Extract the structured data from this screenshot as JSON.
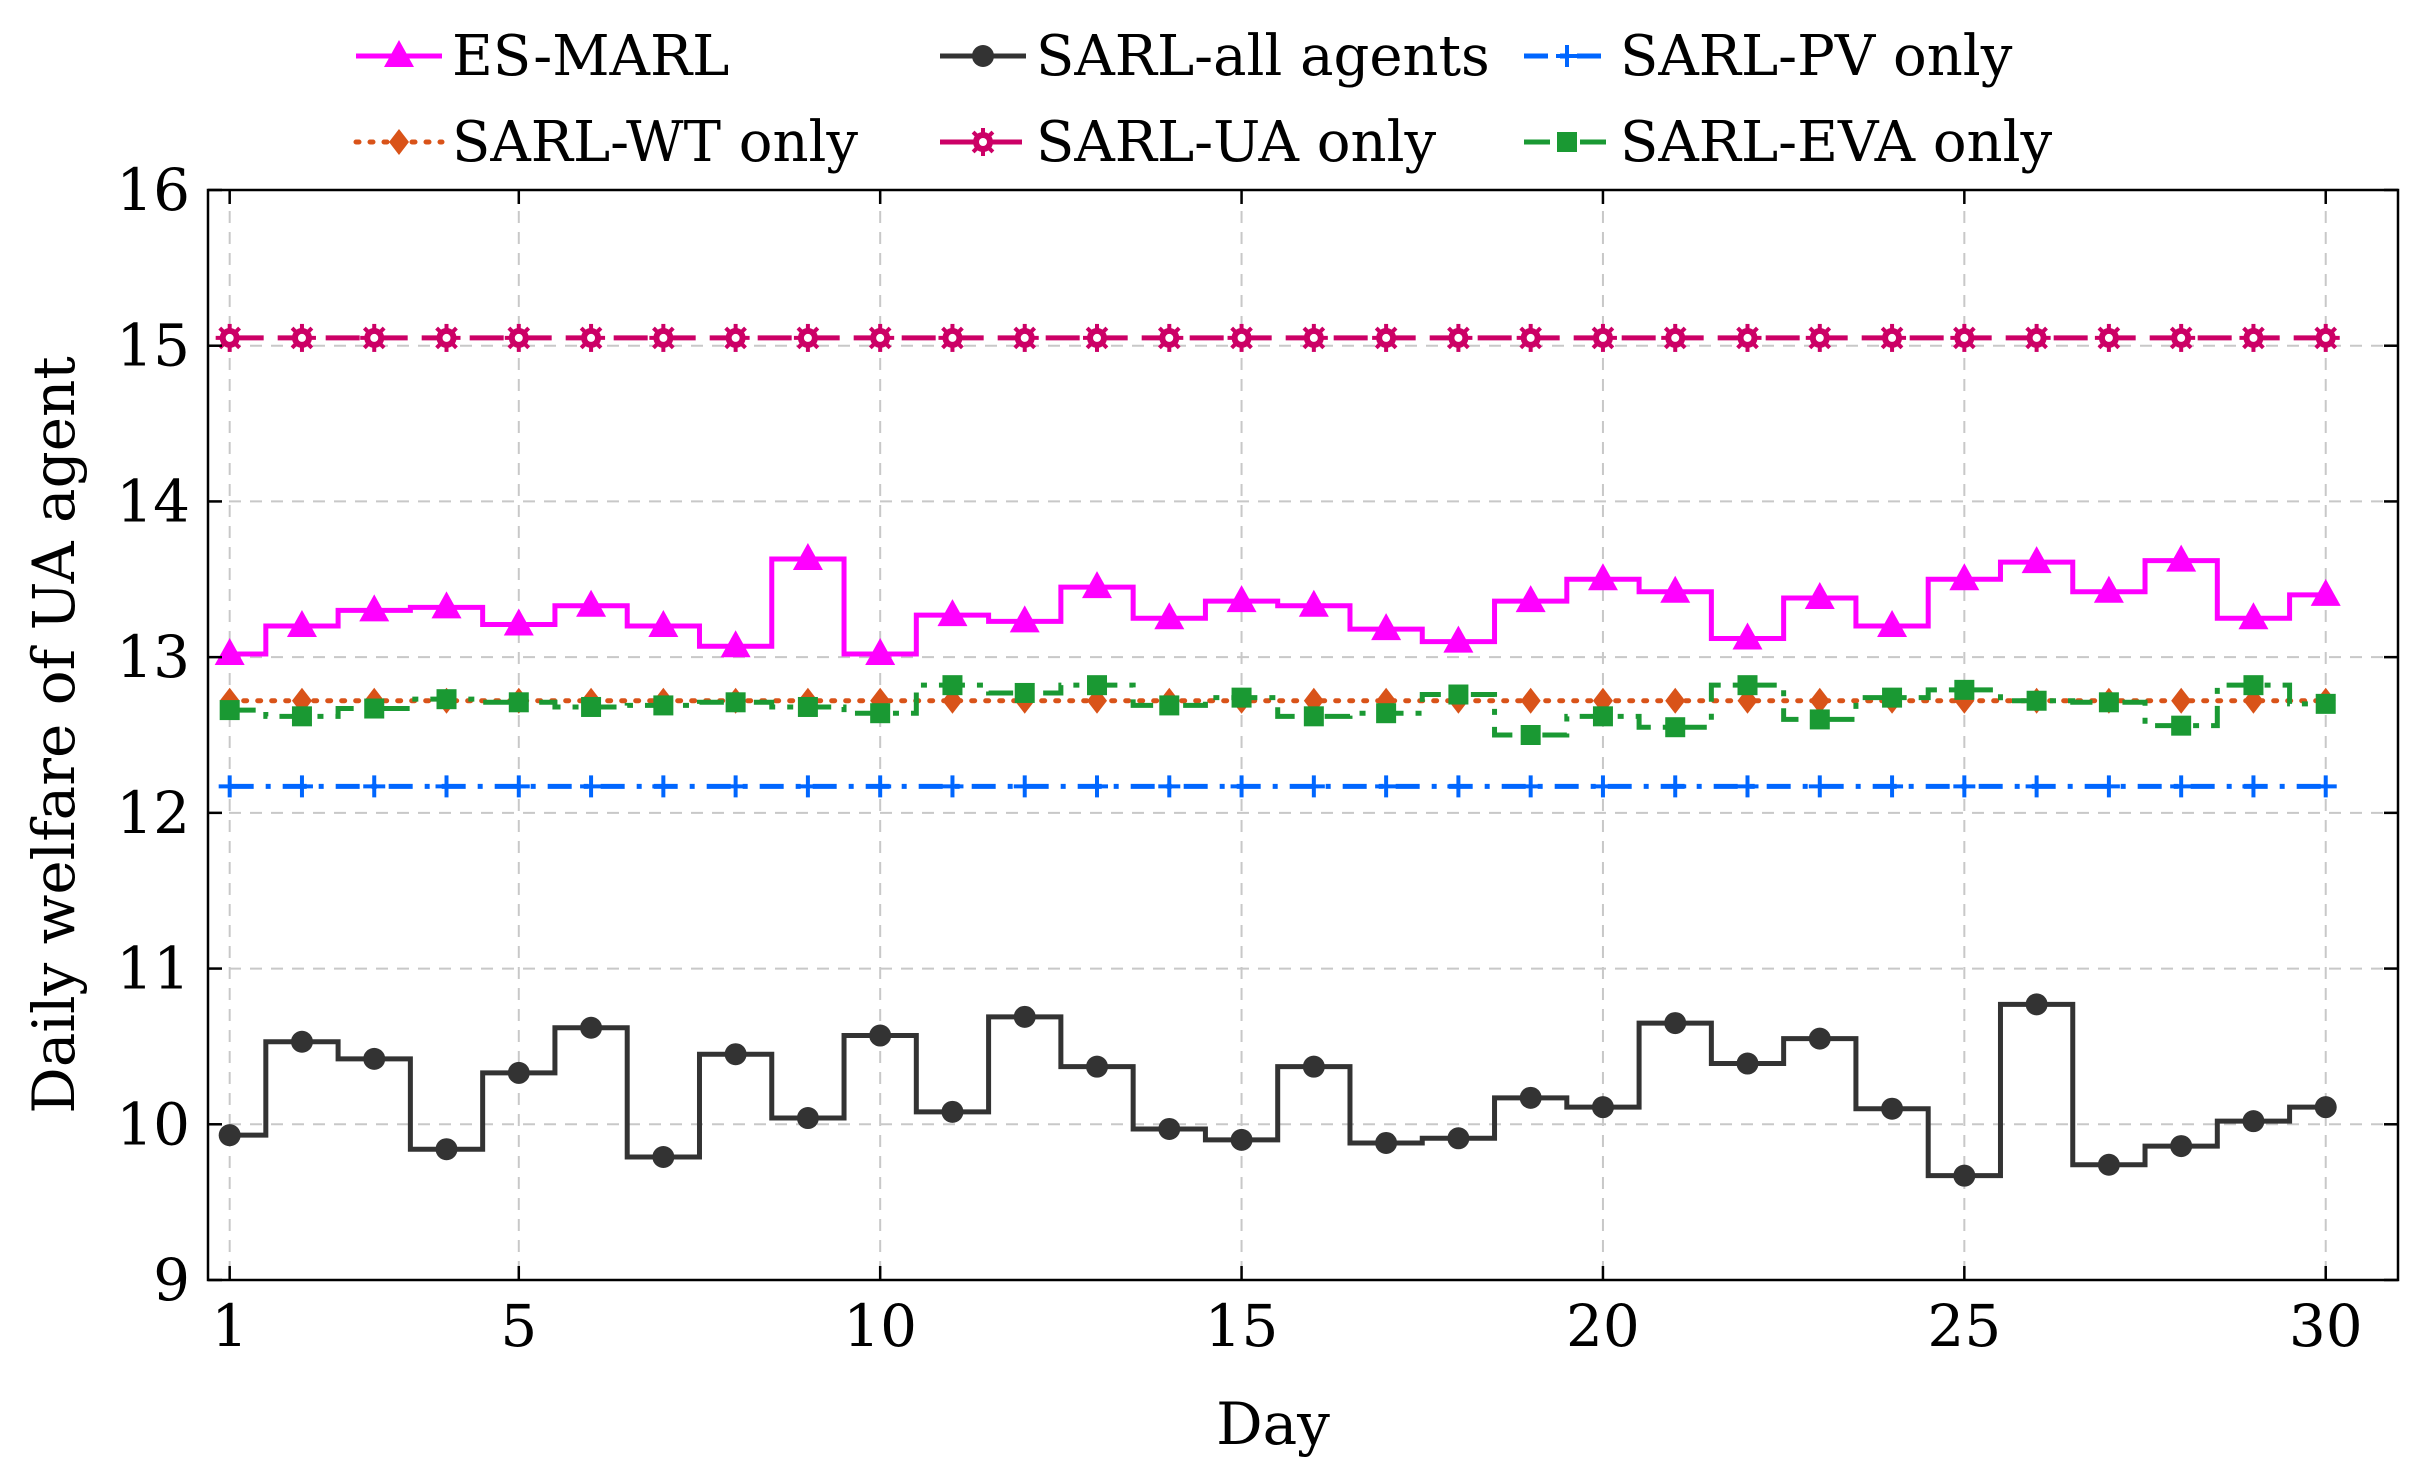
{
  "chart_data": {
    "type": "line",
    "title": "",
    "xlabel": "Day",
    "ylabel": "Daily welfare of UA agent",
    "xlim": [
      0.7,
      31
    ],
    "ylim": [
      9,
      16
    ],
    "xticks": [
      1,
      5,
      10,
      15,
      20,
      25,
      30
    ],
    "yticks": [
      9,
      10,
      11,
      12,
      13,
      14,
      15,
      16
    ],
    "grid": true,
    "legend_position": "top",
    "x": [
      1,
      2,
      3,
      4,
      5,
      6,
      7,
      8,
      9,
      10,
      11,
      12,
      13,
      14,
      15,
      16,
      17,
      18,
      19,
      20,
      21,
      22,
      23,
      24,
      25,
      26,
      27,
      28,
      29,
      30
    ],
    "series": [
      {
        "name": "ES-MARL",
        "style": "steps",
        "color": "#ff00ff",
        "marker": "triangle",
        "values": [
          13.02,
          13.2,
          13.3,
          13.32,
          13.21,
          13.33,
          13.2,
          13.07,
          13.63,
          13.02,
          13.27,
          13.23,
          13.45,
          13.25,
          13.36,
          13.33,
          13.18,
          13.1,
          13.36,
          13.5,
          13.42,
          13.12,
          13.38,
          13.2,
          13.5,
          13.61,
          13.42,
          13.62,
          13.25,
          13.4
        ]
      },
      {
        "name": "SARL-all agents",
        "style": "steps",
        "color": "#333333",
        "marker": "circle",
        "values": [
          9.93,
          10.53,
          10.42,
          9.84,
          10.33,
          10.62,
          9.79,
          10.45,
          10.04,
          10.57,
          10.08,
          10.69,
          10.37,
          9.97,
          9.9,
          10.37,
          9.88,
          9.91,
          10.17,
          10.11,
          10.65,
          10.39,
          10.55,
          10.1,
          9.67,
          10.77,
          9.74,
          9.86,
          10.02,
          10.11
        ]
      },
      {
        "name": "SARL-PV only",
        "style": "dashdot",
        "color": "#0066ff",
        "marker": "plus",
        "values": [
          12.17,
          12.17,
          12.17,
          12.17,
          12.17,
          12.17,
          12.17,
          12.17,
          12.17,
          12.17,
          12.17,
          12.17,
          12.17,
          12.17,
          12.17,
          12.17,
          12.17,
          12.17,
          12.17,
          12.17,
          12.17,
          12.17,
          12.17,
          12.17,
          12.17,
          12.17,
          12.17,
          12.17,
          12.17,
          12.17
        ]
      },
      {
        "name": "SARL-WT only",
        "style": "dotted",
        "color": "#d95319",
        "marker": "diamond",
        "values": [
          12.72,
          12.72,
          12.72,
          12.72,
          12.72,
          12.72,
          12.72,
          12.72,
          12.72,
          12.72,
          12.72,
          12.72,
          12.72,
          12.72,
          12.72,
          12.72,
          12.72,
          12.72,
          12.72,
          12.72,
          12.72,
          12.72,
          12.72,
          12.72,
          12.72,
          12.72,
          12.72,
          12.72,
          12.72,
          12.72
        ]
      },
      {
        "name": "SARL-UA only",
        "style": "dashed",
        "color": "#cc0066",
        "marker": "asterisk",
        "values": [
          15.05,
          15.05,
          15.05,
          15.05,
          15.05,
          15.05,
          15.05,
          15.05,
          15.05,
          15.05,
          15.05,
          15.05,
          15.05,
          15.05,
          15.05,
          15.05,
          15.05,
          15.05,
          15.05,
          15.05,
          15.05,
          15.05,
          15.05,
          15.05,
          15.05,
          15.05,
          15.05,
          15.05,
          15.05,
          15.05
        ]
      },
      {
        "name": "SARL-EVA only",
        "style": "steps-dashdot",
        "color": "#1a9933",
        "marker": "square",
        "values": [
          12.66,
          12.62,
          12.67,
          12.73,
          12.71,
          12.68,
          12.69,
          12.71,
          12.68,
          12.64,
          12.82,
          12.77,
          12.82,
          12.69,
          12.74,
          12.62,
          12.64,
          12.76,
          12.5,
          12.62,
          12.55,
          12.82,
          12.6,
          12.74,
          12.79,
          12.72,
          12.71,
          12.56,
          12.82,
          12.7
        ]
      }
    ]
  }
}
